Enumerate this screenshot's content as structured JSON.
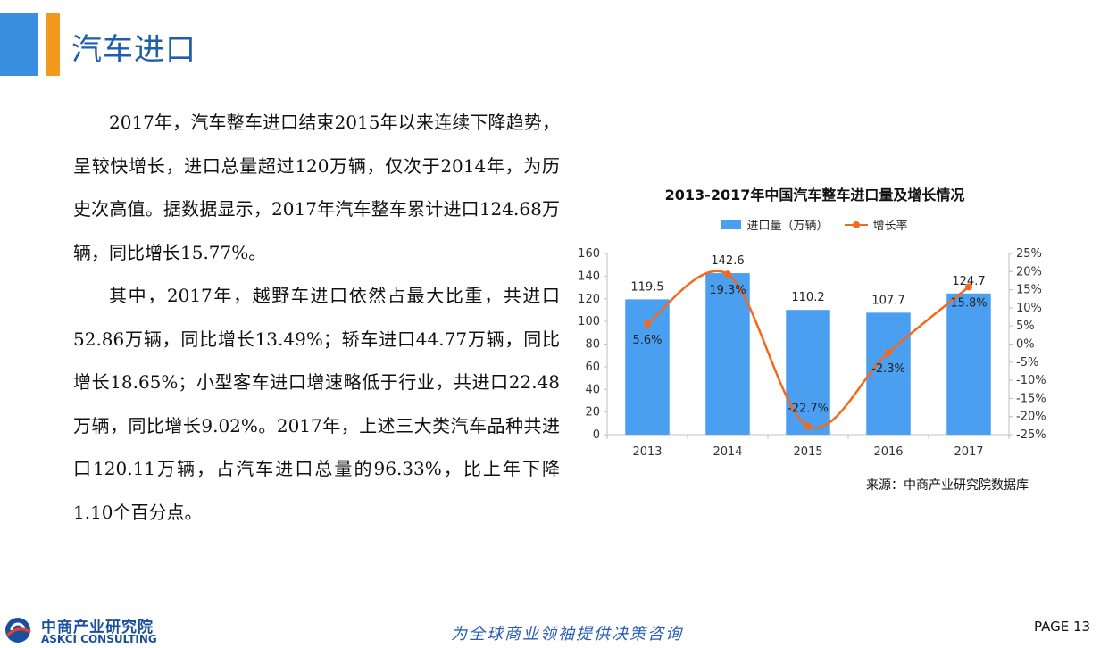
{
  "header": {
    "title": "汽车进口"
  },
  "body": {
    "paragraphs": [
      "2017年，汽车整车进口结束2015年以来连续下降趋势，呈较快增长，进口总量超过120万辆，仅次于2014年，为历史次高值。据数据显示，2017年汽车整车累计进口124.68万辆，同比增长15.77%。",
      "其中，2017年，越野车进口依然占最大比重，共进口52.86万辆，同比增长13.49%；轿车进口44.77万辆，同比增长18.65%；小型客车进口增速略低于行业，共进口22.48万辆，同比增长9.02%。2017年，上述三大类汽车品种共进口120.11万辆，占汽车进口总量的96.33%，比上年下降1.10个百分点。"
    ]
  },
  "chart_data": {
    "type": "bar",
    "title": "2013-2017年中国汽车整车进口量及增长情况",
    "categories": [
      "2013",
      "2014",
      "2015",
      "2016",
      "2017"
    ],
    "series": [
      {
        "name": "进口量（万辆）",
        "type": "bar",
        "axis": "left",
        "values": [
          119.5,
          142.6,
          110.2,
          107.7,
          124.7
        ],
        "labels": [
          "119.5",
          "142.6",
          "110.2",
          "107.7",
          "124.7"
        ],
        "color": "#4a9ff0"
      },
      {
        "name": "增长率",
        "type": "line",
        "smooth": true,
        "axis": "right",
        "values": [
          5.6,
          19.3,
          -22.7,
          -2.3,
          15.8
        ],
        "labels": [
          "5.6%",
          "19.3%",
          "-22.7%",
          "-2.3%",
          "15.8%"
        ],
        "color": "#f36a1d"
      }
    ],
    "y_left": {
      "min": 0,
      "max": 160,
      "ticks": [
        "0",
        "20",
        "40",
        "60",
        "80",
        "100",
        "120",
        "140",
        "160"
      ]
    },
    "y_right": {
      "min": -25,
      "max": 25,
      "ticks": [
        "-25%",
        "-20%",
        "-15%",
        "-10%",
        "-5%",
        "0%",
        "5%",
        "10%",
        "15%",
        "20%",
        "25%"
      ]
    },
    "grid": false,
    "legend_position": "top-center",
    "source": "来源：中商产业研究院数据库"
  },
  "footer": {
    "logo_cn": "中商产业研究院",
    "logo_en": "ASKCI CONSULTING",
    "slogan": "为全球商业领袖提供决策咨询",
    "page": "PAGE 13"
  },
  "colors": {
    "brand_blue": "#3b8fe0",
    "brand_orange": "#f39a1e",
    "title_blue": "#1f5ea8"
  }
}
